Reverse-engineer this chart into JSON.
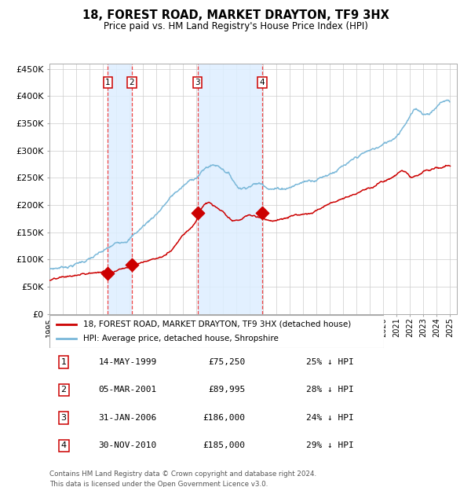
{
  "title": "18, FOREST ROAD, MARKET DRAYTON, TF9 3HX",
  "subtitle": "Price paid vs. HM Land Registry's House Price Index (HPI)",
  "legend_line1": "18, FOREST ROAD, MARKET DRAYTON, TF9 3HX (detached house)",
  "legend_line2": "HPI: Average price, detached house, Shropshire",
  "footer1": "Contains HM Land Registry data © Crown copyright and database right 2024.",
  "footer2": "This data is licensed under the Open Government Licence v3.0.",
  "transactions": [
    {
      "num": 1,
      "date": "14-MAY-1999",
      "price": 75250,
      "pct": "25% ↓ HPI",
      "year_x": 1999.37
    },
    {
      "num": 2,
      "date": "05-MAR-2001",
      "price": 89995,
      "pct": "28% ↓ HPI",
      "year_x": 2001.17
    },
    {
      "num": 3,
      "date": "31-JAN-2006",
      "price": 186000,
      "pct": "24% ↓ HPI",
      "year_x": 2006.08
    },
    {
      "num": 4,
      "date": "30-NOV-2010",
      "price": 185000,
      "pct": "29% ↓ HPI",
      "year_x": 2010.92
    }
  ],
  "hpi_color": "#7ab8d9",
  "price_color": "#cc0000",
  "shade_color": "#ddeeff",
  "dashed_color": "#ee4444",
  "grid_color": "#cccccc",
  "ylim": [
    0,
    460000
  ],
  "xlim_start": 1995.0,
  "xlim_end": 2025.5,
  "hpi_data": {
    "years": [
      1995,
      1996,
      1997,
      1998,
      1999,
      2000,
      2001,
      2002,
      2003,
      2004,
      2005,
      2006,
      2007,
      2008,
      2008.5,
      2009,
      2009.5,
      2010,
      2011,
      2012,
      2013,
      2014,
      2015,
      2016,
      2017,
      2017.5,
      2018,
      2019,
      2020,
      2021,
      2021.5,
      2022,
      2022.5,
      2023,
      2024,
      2025
    ],
    "vals": [
      82000,
      87000,
      95000,
      105000,
      115000,
      127000,
      143000,
      165000,
      190000,
      218000,
      240000,
      258000,
      278000,
      275000,
      265000,
      248000,
      245000,
      252000,
      255000,
      252000,
      258000,
      268000,
      278000,
      292000,
      305000,
      308000,
      315000,
      325000,
      335000,
      355000,
      375000,
      395000,
      405000,
      400000,
      415000,
      425000
    ]
  },
  "price_data": {
    "years": [
      1995,
      1996,
      1997,
      1998,
      1999,
      1999.5,
      2000,
      2001,
      2001.5,
      2002,
      2003,
      2004,
      2005,
      2006,
      2006.5,
      2007,
      2007.5,
      2008,
      2008.5,
      2009,
      2009.5,
      2010,
      2010.5,
      2011,
      2012,
      2013,
      2014,
      2015,
      2016,
      2017,
      2018,
      2019,
      2020,
      2021,
      2021.5,
      2022,
      2022.5,
      2023,
      2024,
      2025
    ],
    "vals": [
      62000,
      64000,
      67000,
      70000,
      74000,
      76000,
      80000,
      90000,
      95000,
      100000,
      108000,
      120000,
      155000,
      185000,
      210000,
      215000,
      205000,
      195000,
      180000,
      175000,
      180000,
      185000,
      182000,
      180000,
      178000,
      182000,
      188000,
      198000,
      210000,
      225000,
      238000,
      250000,
      260000,
      272000,
      278000,
      265000,
      268000,
      272000,
      278000,
      280000
    ]
  }
}
